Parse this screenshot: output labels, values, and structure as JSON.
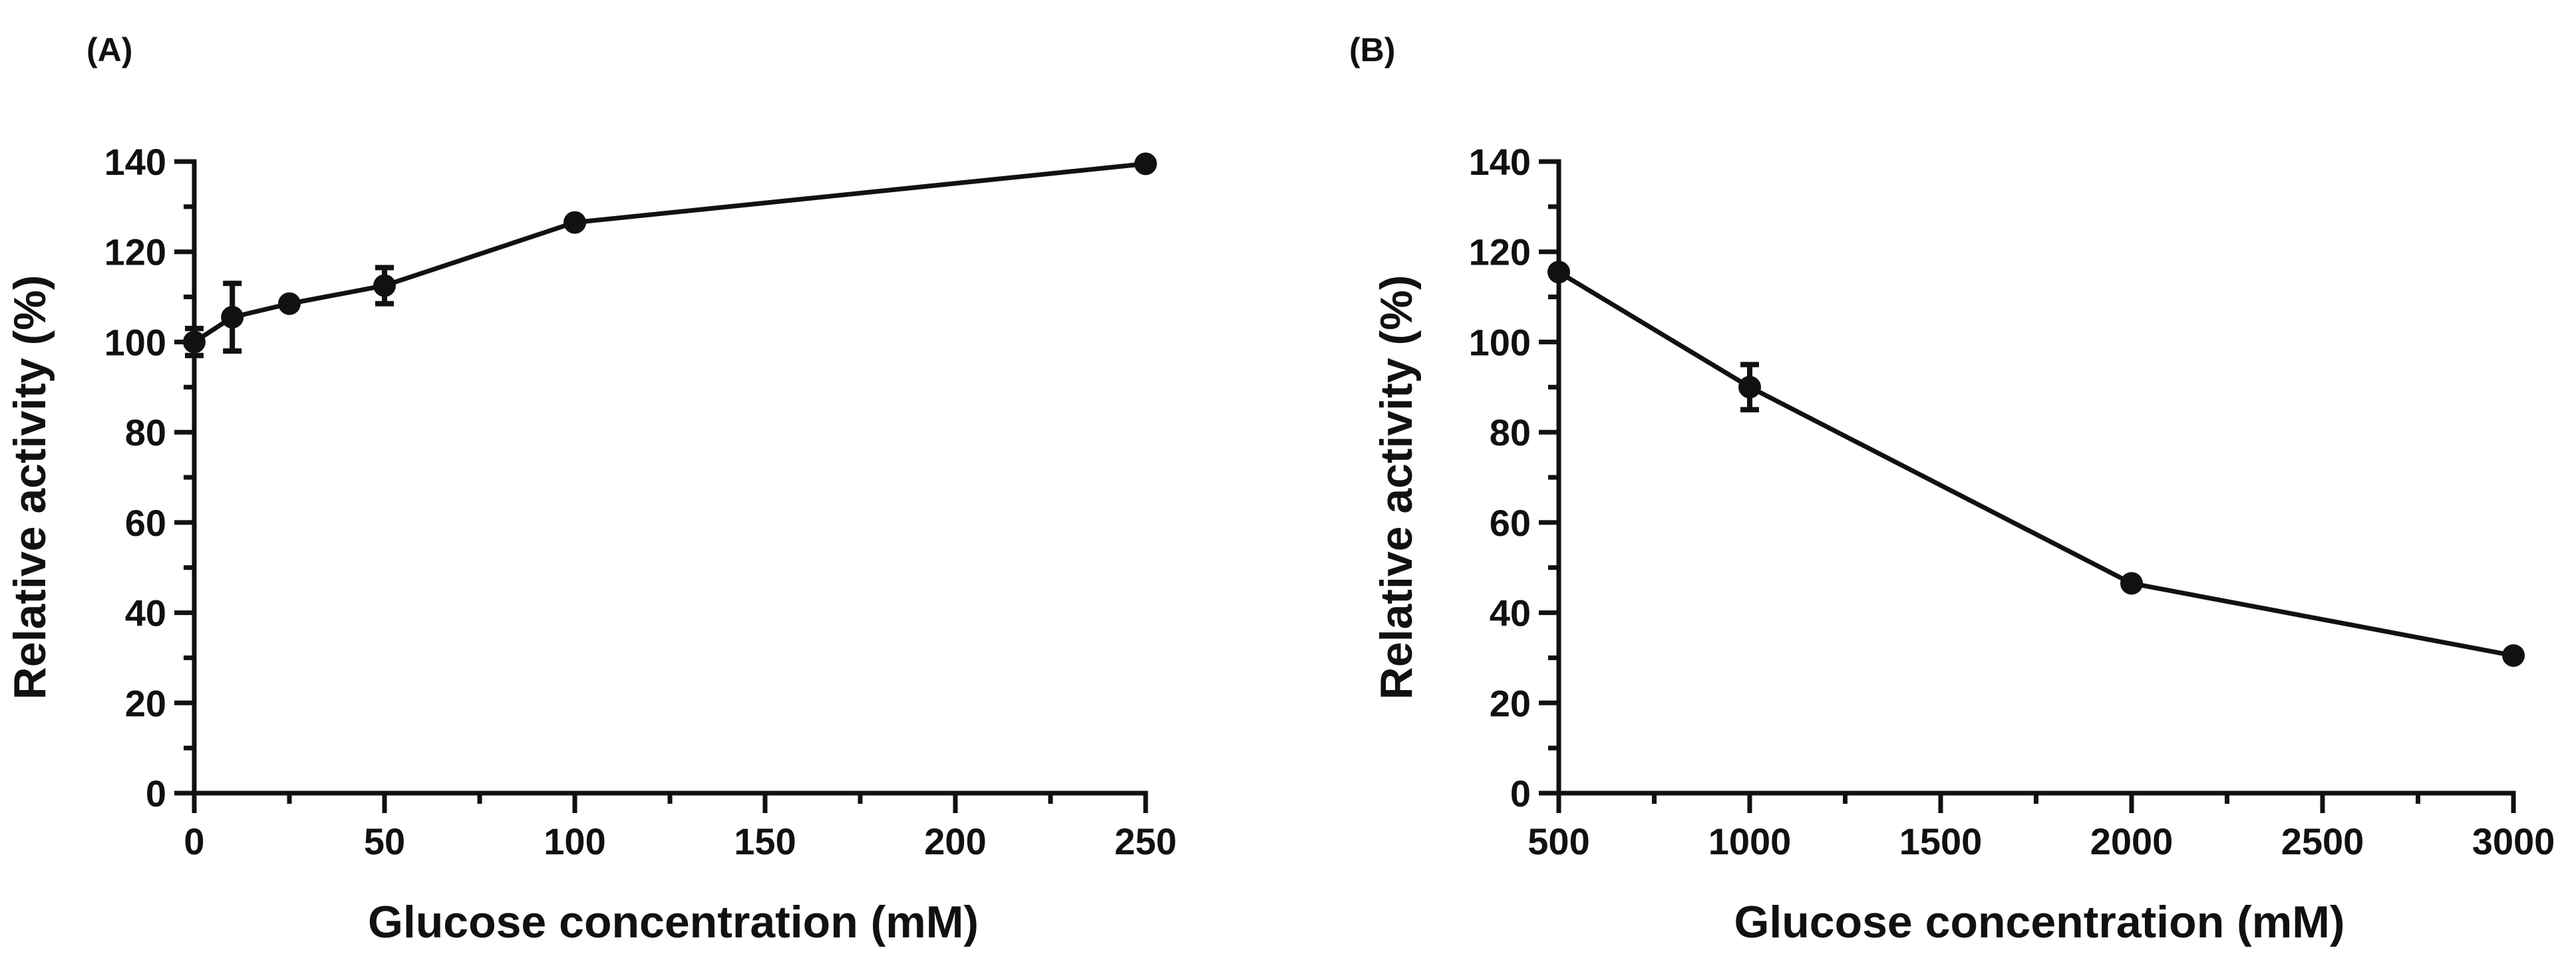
{
  "chart_data": [
    {
      "type": "line",
      "panel_label": "(A)",
      "xlabel": "Glucose concentration (mM)",
      "ylabel": "Relative activity (%)",
      "xlim": [
        0,
        250
      ],
      "ylim": [
        0,
        140
      ],
      "xticks": [
        0,
        50,
        100,
        150,
        200,
        250
      ],
      "yticks": [
        0,
        20,
        40,
        60,
        80,
        100,
        120,
        140
      ],
      "xminor_step": 25,
      "yminor_step": 10,
      "x": [
        0,
        10,
        25,
        50,
        100,
        250
      ],
      "y": [
        100,
        105.5,
        108.5,
        112.5,
        126.5,
        139.5
      ],
      "error": [
        3,
        7.5,
        1,
        4,
        1,
        1
      ]
    },
    {
      "type": "line",
      "panel_label": "(B)",
      "xlabel": "Glucose concentration (mM)",
      "ylabel": "Relative activity (%)",
      "xlim": [
        500,
        3000
      ],
      "ylim": [
        0,
        140
      ],
      "xticks": [
        500,
        1000,
        1500,
        2000,
        2500,
        3000
      ],
      "yticks": [
        0,
        20,
        40,
        60,
        80,
        100,
        120,
        140
      ],
      "xminor_step": 250,
      "yminor_step": 10,
      "x": [
        500,
        1000,
        2000,
        3000
      ],
      "y": [
        115.5,
        90,
        46.5,
        30.5
      ],
      "error": [
        1.5,
        5,
        1,
        1
      ]
    }
  ]
}
